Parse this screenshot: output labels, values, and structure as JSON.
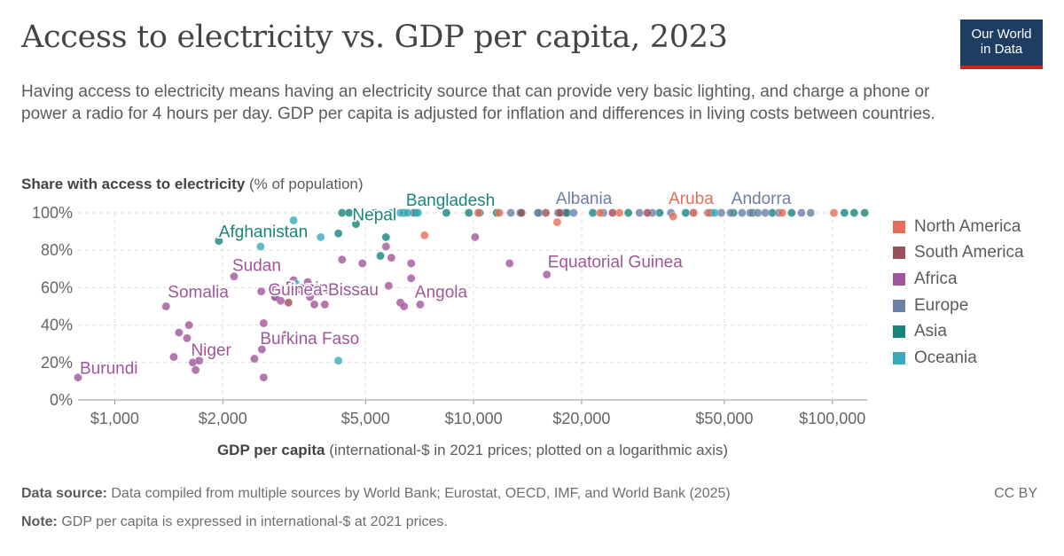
{
  "header": {
    "title": "Access to electricity vs. GDP per capita, 2023",
    "subtitle": "Having access to electricity means having an electricity source that can provide very basic lighting, and charge a phone or power a radio for 4 hours per day. GDP per capita is adjusted for inflation and differences in living costs between countries.",
    "logo_line1": "Our World",
    "logo_line2": "in Data"
  },
  "axes": {
    "y_label_bold": "Share with access to electricity",
    "y_label_rest": " (% of population)",
    "x_label_bold": "GDP per capita",
    "x_label_rest": " (international-$ in 2021 prices; plotted on a logarithmic axis)"
  },
  "footer": {
    "source_bold": "Data source:",
    "source_text": " Data compiled from multiple sources by World Bank; Eurostat, OECD, IMF, and World Bank (2025)",
    "note_bold": "Note:",
    "note_text": " GDP per capita is expressed in international-$ at 2021 prices.",
    "license": "CC BY"
  },
  "chart_data": {
    "type": "scatter",
    "title": "Access to electricity vs. GDP per capita, 2023",
    "xlabel": "GDP per capita (international-$ in 2021 prices; plotted on a logarithmic axis)",
    "ylabel": "Share with access to electricity (% of population)",
    "x_scale": "log",
    "xlim": [
      790,
      125000
    ],
    "ylim": [
      0,
      100
    ],
    "x_ticks": [
      1000,
      2000,
      5000,
      10000,
      20000,
      50000,
      100000
    ],
    "x_tick_labels": [
      "$1,000",
      "$2,000",
      "$5,000",
      "$10,000",
      "$20,000",
      "$50,000",
      "$100,000"
    ],
    "y_ticks": [
      0,
      20,
      40,
      60,
      80,
      100
    ],
    "y_tick_labels": [
      "0%",
      "20%",
      "40%",
      "60%",
      "80%",
      "100%"
    ],
    "grid": true,
    "legend_position": "right",
    "colors": {
      "North America": "#e56e5a",
      "South America": "#9a5058",
      "Africa": "#a2559c",
      "Europe": "#6d7fa6",
      "Asia": "#18857a",
      "Oceania": "#38aabb"
    },
    "series": [
      {
        "name": "Africa",
        "points": [
          {
            "x": 790,
            "y": 12,
            "label": "Burundi"
          },
          {
            "x": 1390,
            "y": 50,
            "label": "Somalia"
          },
          {
            "x": 1650,
            "y": 20,
            "label": "Niger"
          },
          {
            "x": 2150,
            "y": 66,
            "label": "Sudan"
          },
          {
            "x": 3500,
            "y": 55,
            "label": "Benin"
          },
          {
            "x": 2800,
            "y": 55,
            "label": "Guinea-Bissau"
          },
          {
            "x": 2570,
            "y": 27,
            "label": "Burkina Faso"
          },
          {
            "x": 7100,
            "y": 51,
            "label": "Angola"
          },
          {
            "x": 16000,
            "y": 67,
            "label": "Equatorial Guinea"
          },
          {
            "x": 1460,
            "y": 23
          },
          {
            "x": 1510,
            "y": 36
          },
          {
            "x": 1610,
            "y": 40
          },
          {
            "x": 1590,
            "y": 33
          },
          {
            "x": 1680,
            "y": 16
          },
          {
            "x": 1720,
            "y": 21
          },
          {
            "x": 2600,
            "y": 12
          },
          {
            "x": 2450,
            "y": 22
          },
          {
            "x": 2600,
            "y": 41
          },
          {
            "x": 2560,
            "y": 58
          },
          {
            "x": 2750,
            "y": 60
          },
          {
            "x": 2800,
            "y": 55
          },
          {
            "x": 2900,
            "y": 53
          },
          {
            "x": 3000,
            "y": 35
          },
          {
            "x": 3150,
            "y": 64
          },
          {
            "x": 3450,
            "y": 63
          },
          {
            "x": 3700,
            "y": 58
          },
          {
            "x": 3600,
            "y": 51
          },
          {
            "x": 3850,
            "y": 51
          },
          {
            "x": 4300,
            "y": 75
          },
          {
            "x": 4900,
            "y": 73
          },
          {
            "x": 5700,
            "y": 82
          },
          {
            "x": 5900,
            "y": 76
          },
          {
            "x": 5800,
            "y": 61
          },
          {
            "x": 6250,
            "y": 52
          },
          {
            "x": 6400,
            "y": 50
          },
          {
            "x": 6700,
            "y": 65
          },
          {
            "x": 6700,
            "y": 73
          },
          {
            "x": 10100,
            "y": 87
          },
          {
            "x": 12600,
            "y": 73
          },
          {
            "x": 6800,
            "y": 100
          },
          {
            "x": 18000,
            "y": 100
          }
        ]
      },
      {
        "name": "Asia",
        "points": [
          {
            "x": 1950,
            "y": 85,
            "label": "Afghanistan"
          },
          {
            "x": 4700,
            "y": 94,
            "label": "Nepal"
          },
          {
            "x": 6900,
            "y": 100,
            "label": "Bangladesh"
          },
          {
            "x": 4200,
            "y": 89
          },
          {
            "x": 5500,
            "y": 77
          },
          {
            "x": 5700,
            "y": 87
          },
          {
            "x": 4300,
            "y": 100
          },
          {
            "x": 4500,
            "y": 100
          },
          {
            "x": 5300,
            "y": 100
          },
          {
            "x": 6400,
            "y": 100
          },
          {
            "x": 8400,
            "y": 100
          },
          {
            "x": 9700,
            "y": 100
          },
          {
            "x": 10400,
            "y": 100
          },
          {
            "x": 11600,
            "y": 100
          },
          {
            "x": 13500,
            "y": 100
          },
          {
            "x": 15200,
            "y": 100
          },
          {
            "x": 18200,
            "y": 100
          },
          {
            "x": 21500,
            "y": 100
          },
          {
            "x": 27000,
            "y": 100
          },
          {
            "x": 33000,
            "y": 100
          },
          {
            "x": 39000,
            "y": 100
          },
          {
            "x": 46000,
            "y": 100
          },
          {
            "x": 53000,
            "y": 100
          },
          {
            "x": 60000,
            "y": 100
          },
          {
            "x": 68000,
            "y": 100
          },
          {
            "x": 77000,
            "y": 100
          },
          {
            "x": 108000,
            "y": 100
          },
          {
            "x": 115000,
            "y": 100
          },
          {
            "x": 123000,
            "y": 100
          }
        ]
      },
      {
        "name": "Europe",
        "points": [
          {
            "x": 19000,
            "y": 100,
            "label": "Albania"
          },
          {
            "x": 62000,
            "y": 100,
            "label": "Andorra"
          },
          {
            "x": 12700,
            "y": 100
          },
          {
            "x": 15100,
            "y": 100
          },
          {
            "x": 17200,
            "y": 100
          },
          {
            "x": 23000,
            "y": 100
          },
          {
            "x": 29000,
            "y": 100
          },
          {
            "x": 31500,
            "y": 100
          },
          {
            "x": 35500,
            "y": 100
          },
          {
            "x": 41000,
            "y": 100
          },
          {
            "x": 45000,
            "y": 100
          },
          {
            "x": 49000,
            "y": 100
          },
          {
            "x": 52000,
            "y": 100
          },
          {
            "x": 56000,
            "y": 100
          },
          {
            "x": 59000,
            "y": 100
          },
          {
            "x": 65000,
            "y": 100
          },
          {
            "x": 71000,
            "y": 100
          },
          {
            "x": 82000,
            "y": 100
          },
          {
            "x": 87000,
            "y": 100
          }
        ]
      },
      {
        "name": "North America",
        "points": [
          {
            "x": 41000,
            "y": 100,
            "label": "Aruba"
          },
          {
            "x": 7300,
            "y": 88
          },
          {
            "x": 10300,
            "y": 100
          },
          {
            "x": 11800,
            "y": 100
          },
          {
            "x": 17100,
            "y": 95
          },
          {
            "x": 22500,
            "y": 100
          },
          {
            "x": 25500,
            "y": 100
          },
          {
            "x": 36000,
            "y": 98
          },
          {
            "x": 45500,
            "y": 100
          },
          {
            "x": 72500,
            "y": 100
          },
          {
            "x": 101000,
            "y": 100
          }
        ]
      },
      {
        "name": "South America",
        "points": [
          {
            "x": 3050,
            "y": 52
          },
          {
            "x": 13600,
            "y": 100
          },
          {
            "x": 15900,
            "y": 100
          },
          {
            "x": 17400,
            "y": 100
          },
          {
            "x": 24400,
            "y": 100
          },
          {
            "x": 30500,
            "y": 100
          }
        ]
      },
      {
        "name": "Oceania",
        "points": [
          {
            "x": 2550,
            "y": 82
          },
          {
            "x": 3150,
            "y": 96
          },
          {
            "x": 3200,
            "y": 62
          },
          {
            "x": 3750,
            "y": 87
          },
          {
            "x": 4200,
            "y": 21
          },
          {
            "x": 5900,
            "y": 100
          },
          {
            "x": 6250,
            "y": 100
          },
          {
            "x": 6550,
            "y": 100
          },
          {
            "x": 7000,
            "y": 100
          },
          {
            "x": 47000,
            "y": 100
          }
        ]
      }
    ]
  }
}
